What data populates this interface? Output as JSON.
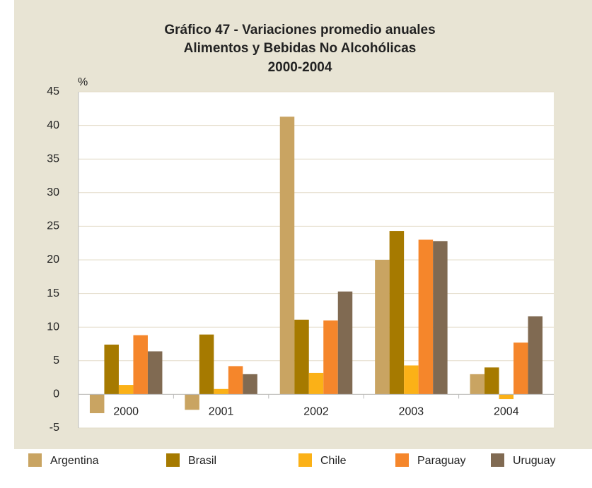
{
  "chart_data": {
    "type": "bar",
    "title": [
      "Gráfico 47 - Variaciones promedio anuales",
      "Alimentos y Bebidas No Alcohólicas",
      "2000-2004"
    ],
    "y_label": "%",
    "categories": [
      "2000",
      "2001",
      "2002",
      "2003",
      "2004"
    ],
    "series": [
      {
        "name": "Argentina",
        "color": "#c9a462",
        "values": [
          -2.8,
          -2.3,
          41.3,
          20.0,
          3.0
        ]
      },
      {
        "name": "Brasil",
        "color": "#a67a00",
        "values": [
          7.4,
          8.9,
          11.1,
          24.3,
          4.0
        ]
      },
      {
        "name": "Chile",
        "color": "#fbb117",
        "values": [
          1.4,
          0.8,
          3.2,
          4.3,
          -0.7
        ]
      },
      {
        "name": "Paraguay",
        "color": "#f5862b",
        "values": [
          8.8,
          4.2,
          11.0,
          23.0,
          7.7
        ]
      },
      {
        "name": "Uruguay",
        "color": "#806a52",
        "values": [
          6.4,
          3.0,
          15.3,
          22.8,
          11.6
        ]
      }
    ],
    "ylim": [
      -5,
      45
    ],
    "yticks": [
      -5,
      0,
      5,
      10,
      15,
      20,
      25,
      30,
      35,
      40,
      45
    ],
    "grid": true
  }
}
